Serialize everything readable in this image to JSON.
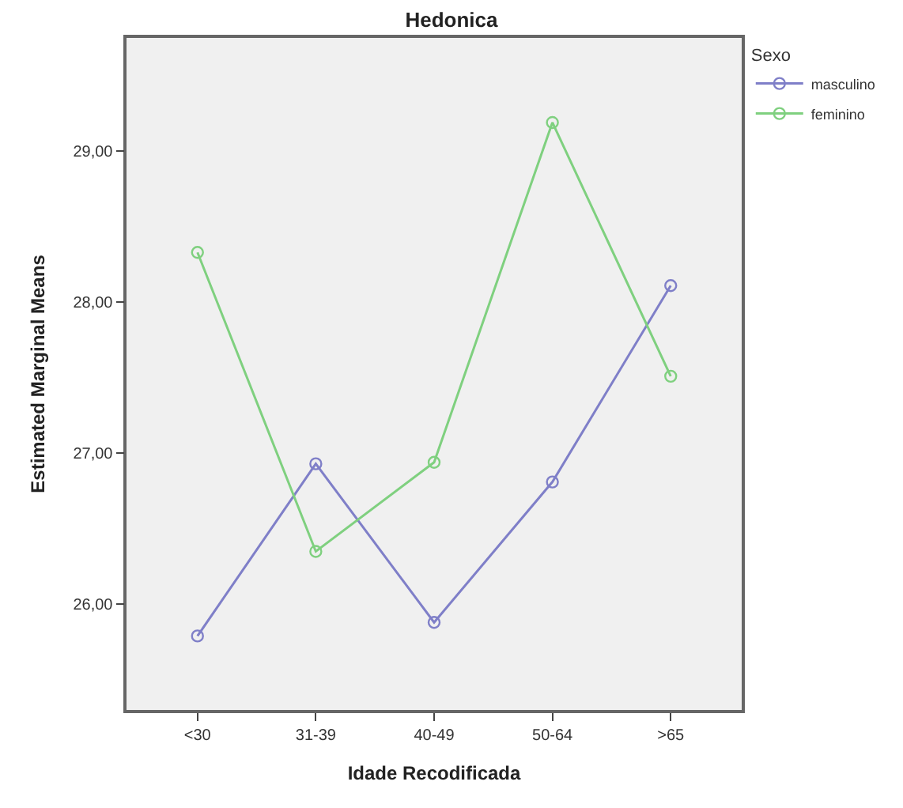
{
  "chart_data": {
    "type": "line",
    "title": "Hedonica",
    "xlabel": "Idade Recodificada",
    "ylabel": "Estimated Marginal Means",
    "legend_title": "Sexo",
    "categories": [
      "<30",
      "31-39",
      "40-49",
      "50-64",
      ">65"
    ],
    "series": [
      {
        "name": "masculino",
        "color": "#7f7fc8",
        "values": [
          25.79,
          26.93,
          25.88,
          26.81,
          28.11
        ]
      },
      {
        "name": "feminino",
        "color": "#7fd07f",
        "values": [
          28.33,
          26.35,
          26.94,
          29.19,
          27.51
        ]
      }
    ],
    "ylim": [
      25.3,
      29.75
    ],
    "yticks": [
      {
        "value": 26,
        "label": "26,00"
      },
      {
        "value": 27,
        "label": "27,00"
      },
      {
        "value": 28,
        "label": "28,00"
      },
      {
        "value": 29,
        "label": "29,00"
      }
    ],
    "grid": false,
    "legend": "top right",
    "marker": "circle",
    "line_style": "solid"
  }
}
